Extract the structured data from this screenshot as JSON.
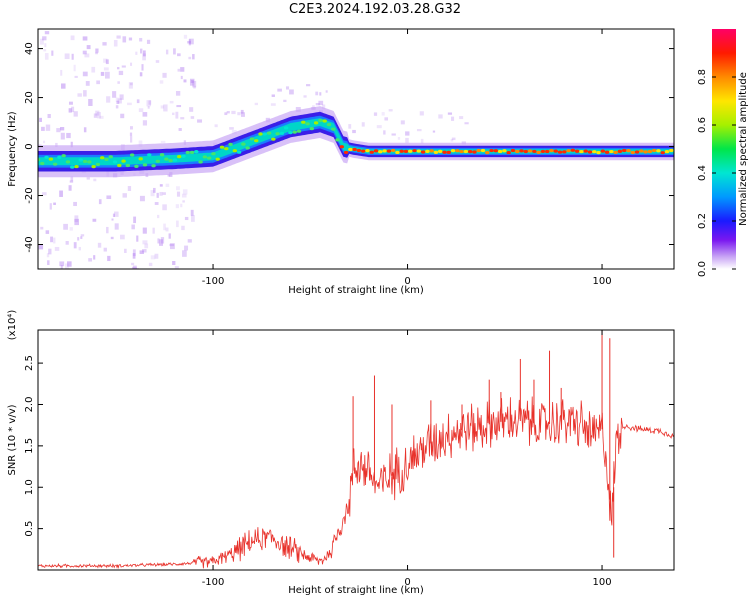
{
  "title": "C2E3.2024.192.03.28.G32",
  "chart_data": [
    {
      "type": "heatmap",
      "xlabel": "Height of straight line (km)",
      "ylabel": "Frequency (Hz)",
      "xlim": [
        -190,
        137
      ],
      "ylim": [
        -50,
        48
      ],
      "xticks": [
        -100,
        0,
        100
      ],
      "yticks": [
        -40,
        -20,
        0,
        20,
        40
      ],
      "colorbar": {
        "label": "Normalized spectral amplitude",
        "range": [
          0.0,
          1.0
        ],
        "ticks": [
          "0.0",
          "0.2",
          "0.4",
          "0.6",
          "0.8"
        ]
      },
      "ridge": {
        "x": [
          -190,
          -150,
          -120,
          -100,
          -80,
          -60,
          -45,
          -38,
          -33,
          -28,
          -20,
          0,
          50,
          100,
          137
        ],
        "y": [
          -6,
          -6,
          -5,
          -4,
          2,
          8,
          10,
          8,
          0,
          -1,
          -2,
          -2,
          -2,
          -2,
          -2
        ]
      }
    },
    {
      "type": "line",
      "xlabel": "Height of straight line (km)",
      "ylabel": "SNR (10 * v/v)",
      "scale_label": "(x10⁴)",
      "xlim": [
        -190,
        137
      ],
      "ylim": [
        0,
        2.9
      ],
      "xticks": [
        -100,
        0,
        100
      ],
      "yticks": [
        "0.5",
        "1.0",
        "1.5",
        "2.0",
        "2.5"
      ],
      "series": [
        {
          "color": "#e8322b",
          "envelope": {
            "x": [
              -190,
              -150,
              -120,
              -100,
              -90,
              -80,
              -70,
              -60,
              -50,
              -45,
              -40,
              -35,
              -30,
              -28,
              -25,
              -20,
              -15,
              -10,
              0,
              10,
              20,
              30,
              40,
              50,
              60,
              70,
              80,
              90,
              95,
              100,
              103,
              105,
              107,
              110,
              120,
              130,
              137
            ],
            "y": [
              0.05,
              0.05,
              0.07,
              0.1,
              0.2,
              0.35,
              0.4,
              0.25,
              0.15,
              0.1,
              0.2,
              0.5,
              0.8,
              1.2,
              1.3,
              1.2,
              1.0,
              1.1,
              1.3,
              1.5,
              1.65,
              1.7,
              1.75,
              1.8,
              1.8,
              1.75,
              1.8,
              1.75,
              1.6,
              1.7,
              1.2,
              0.5,
              1.5,
              1.75,
              1.7,
              1.68,
              1.62
            ]
          },
          "spikes": {
            "x": [
              -28,
              -17,
              -8,
              12,
              28,
              42,
              48,
              58,
              65,
              73,
              79,
              100,
              104,
              106
            ],
            "y": [
              2.1,
              2.35,
              2.0,
              2.05,
              2.0,
              2.3,
              2.15,
              2.55,
              2.3,
              2.65,
              2.2,
              2.9,
              2.8,
              0.15
            ]
          }
        }
      ]
    }
  ]
}
